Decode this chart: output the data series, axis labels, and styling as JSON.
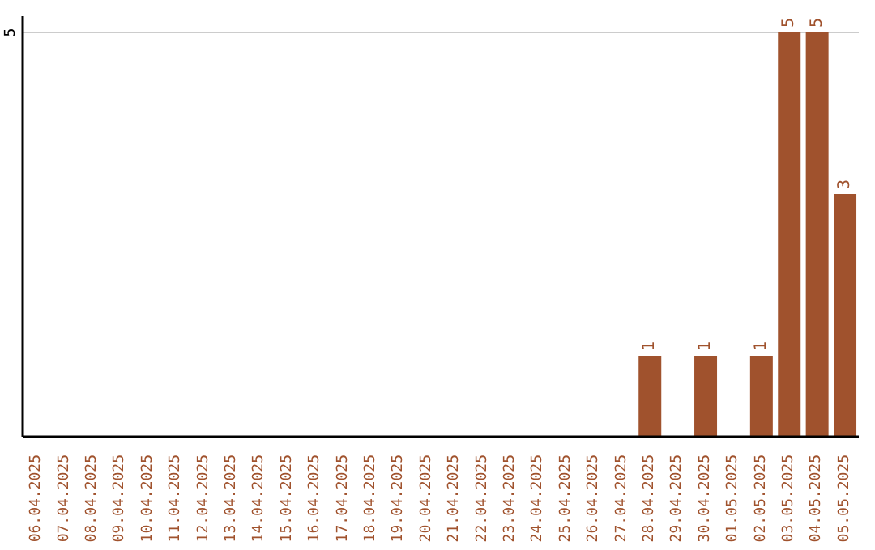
{
  "chart_data": {
    "type": "bar",
    "categories": [
      "06.04.2025",
      "07.04.2025",
      "08.04.2025",
      "09.04.2025",
      "10.04.2025",
      "11.04.2025",
      "12.04.2025",
      "13.04.2025",
      "14.04.2025",
      "15.04.2025",
      "16.04.2025",
      "17.04.2025",
      "18.04.2025",
      "19.04.2025",
      "20.04.2025",
      "21.04.2025",
      "22.04.2025",
      "23.04.2025",
      "24.04.2025",
      "25.04.2025",
      "26.04.2025",
      "27.04.2025",
      "28.04.2025",
      "29.04.2025",
      "30.04.2025",
      "01.05.2025",
      "02.05.2025",
      "03.05.2025",
      "04.05.2025",
      "05.05.2025"
    ],
    "values": [
      null,
      null,
      null,
      null,
      null,
      null,
      null,
      null,
      null,
      null,
      null,
      null,
      null,
      null,
      null,
      null,
      null,
      null,
      null,
      null,
      null,
      null,
      1,
      null,
      1,
      null,
      1,
      5,
      5,
      3
    ],
    "data_labels": true,
    "color": "#a0522d",
    "ylim": [
      0,
      5.2
    ],
    "yticks": [
      5
    ],
    "grid": "y"
  }
}
